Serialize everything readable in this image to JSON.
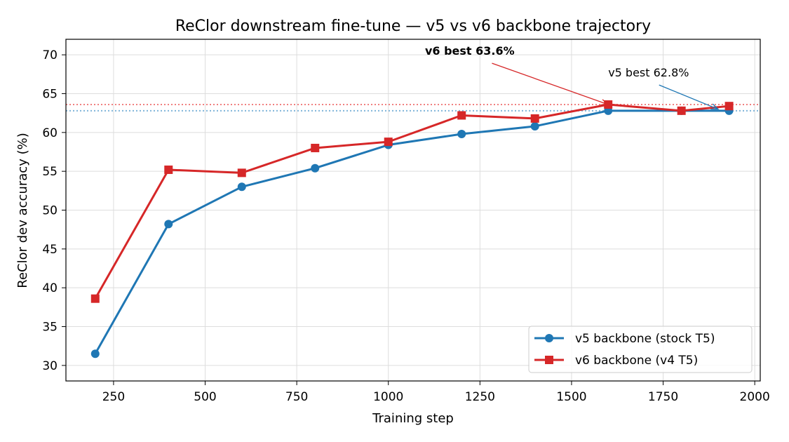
{
  "chart_data": {
    "type": "line",
    "title": "ReClor downstream fine-tune — v5 vs v6 backbone trajectory",
    "xlabel": "Training step",
    "ylabel": "ReClor dev accuracy (%)",
    "xlim": [
      120,
      2015
    ],
    "ylim": [
      28,
      72
    ],
    "xticks": [
      250,
      500,
      750,
      1000,
      1250,
      1500,
      1750,
      2000
    ],
    "yticks": [
      30,
      35,
      40,
      45,
      50,
      55,
      60,
      65,
      70
    ],
    "grid": true,
    "legend_position": "lower-right",
    "series": [
      {
        "name": "v5 backbone (stock T5)",
        "color": "#1f77b4",
        "marker": "circle",
        "x": [
          200,
          400,
          600,
          800,
          1000,
          1200,
          1400,
          1600,
          1800,
          1930
        ],
        "y": [
          31.5,
          48.2,
          53.0,
          55.4,
          58.4,
          59.8,
          60.8,
          62.8,
          62.8,
          62.8
        ]
      },
      {
        "name": "v6 backbone (v4 T5)",
        "color": "#d62728",
        "marker": "square",
        "x": [
          200,
          400,
          600,
          800,
          1000,
          1200,
          1400,
          1600,
          1800,
          1930
        ],
        "y": [
          38.6,
          55.2,
          54.8,
          58.0,
          58.8,
          62.2,
          61.8,
          63.6,
          62.8,
          63.4
        ]
      }
    ],
    "reference_lines": [
      {
        "y": 63.6,
        "color": "#f08080",
        "style": "dotted"
      },
      {
        "y": 62.8,
        "color": "#7fb4d9",
        "style": "dotted"
      }
    ],
    "annotations": [
      {
        "text": "v6 best 63.6%",
        "bold": true,
        "color": "#d62728",
        "text_x": 1100,
        "text_y": 70,
        "target_x": 1600,
        "target_y": 63.6
      },
      {
        "text": "v5 best 62.8%",
        "bold": false,
        "color": "#1f77b4",
        "text_x": 1600,
        "text_y": 67.2,
        "target_x": 1900,
        "target_y": 63.0
      }
    ]
  }
}
